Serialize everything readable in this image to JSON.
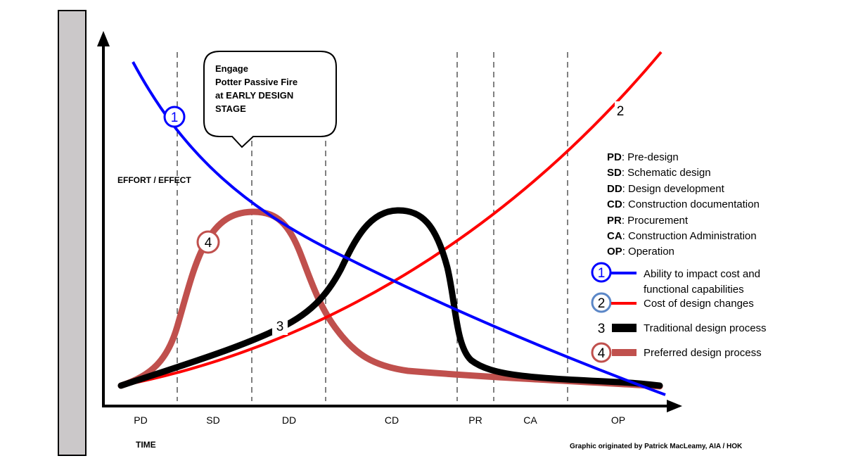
{
  "axes": {
    "y_label": "EFFORT / EFFECT",
    "x_label": "TIME",
    "phases": [
      "PD",
      "SD",
      "DD",
      "CD",
      "PR",
      "CA",
      "OP"
    ]
  },
  "callout": {
    "lines": [
      "Engage",
      "Potter Passive Fire",
      "at EARLY DESIGN",
      "STAGE"
    ]
  },
  "curves": [
    {
      "marker": "1",
      "name": "Ability to impact cost and functional capabilities",
      "color": "#0000ff",
      "marker_ring": "#0000ff"
    },
    {
      "marker": "2",
      "name": "Cost of design changes",
      "color": "#ff0000",
      "marker_ring": "#5b87c7"
    },
    {
      "marker": "3",
      "name": "Traditional design process",
      "color": "#000000",
      "marker_ring": "none"
    },
    {
      "marker": "4",
      "name": "Preferred design process",
      "color": "#c0504d",
      "marker_ring": "#c0504d"
    }
  ],
  "legend": {
    "abbreviations": [
      {
        "abbr": "PD",
        "text": ": Pre-design"
      },
      {
        "abbr": "SD",
        "text": ": Schematic design"
      },
      {
        "abbr": "DD",
        "text": ": Design development"
      },
      {
        "abbr": "CD",
        "text": ": Construction documentation"
      },
      {
        "abbr": "PR",
        "text": ": Procurement"
      },
      {
        "abbr": "CA",
        "text": ": Construction Administration"
      },
      {
        "abbr": "OP",
        "text": ": Operation"
      }
    ],
    "series": [
      {
        "marker": "1",
        "lines": [
          "Ability to impact cost and",
          "functional capabilities"
        ]
      },
      {
        "marker": "2",
        "lines": [
          "Cost of design changes"
        ]
      },
      {
        "marker": "3",
        "lines": [
          "Traditional design process"
        ]
      },
      {
        "marker": "4",
        "lines": [
          "Preferred design process"
        ]
      }
    ]
  },
  "credit": "Graphic originated by Patrick MacLeamy, AIA / HOK"
}
